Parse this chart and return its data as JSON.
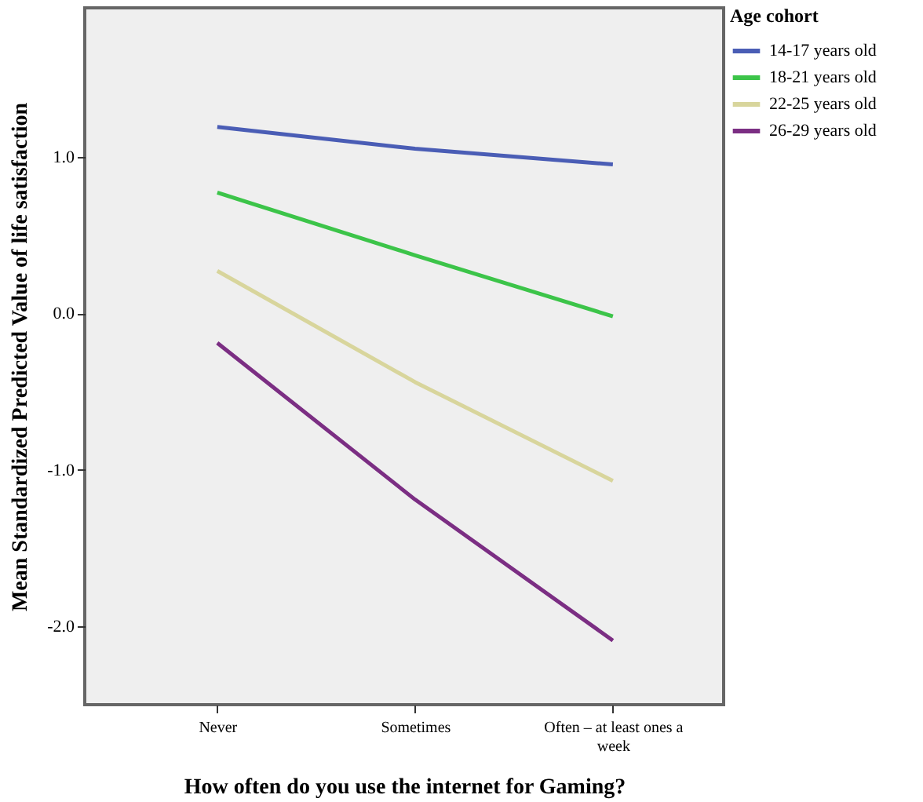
{
  "chart_data": {
    "type": "line",
    "xlabel": "How often do you use the internet for Gaming?",
    "ylabel": "Mean Standardized Predicted Value of life satisfaction",
    "legend_title": "Age cohort",
    "categories": [
      "Never",
      "Sometimes",
      "Often – at least ones a week"
    ],
    "series": [
      {
        "name": "14-17 years old",
        "color": "#4a5db5",
        "values": [
          1.19,
          1.05,
          0.95
        ]
      },
      {
        "name": "18-21 years old",
        "color": "#3cc449",
        "values": [
          0.77,
          0.37,
          -0.02
        ]
      },
      {
        "name": "22-25 years old",
        "color": "#d8d59c",
        "values": [
          0.27,
          -0.44,
          -1.07
        ]
      },
      {
        "name": "26-29 years old",
        "color": "#7b2e83",
        "values": [
          -0.19,
          -1.19,
          -2.09
        ]
      }
    ],
    "ylim": [
      -2.5,
      1.95
    ],
    "yticks": [
      {
        "value": -2,
        "label": "-2.0"
      },
      {
        "value": -1,
        "label": "-1.0"
      },
      {
        "value": 0,
        "label": "0.0"
      },
      {
        "value": 1,
        "label": "1.0"
      }
    ],
    "grid": false,
    "legend": "top right",
    "marker": "none",
    "line_style": "solid"
  }
}
